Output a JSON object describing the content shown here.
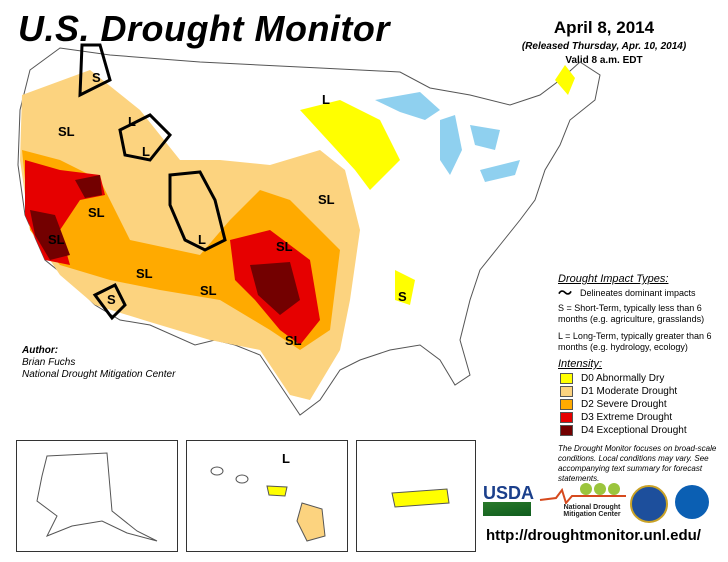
{
  "header": {
    "title": "U.S. Drought Monitor",
    "date": "April 8, 2014",
    "released": "(Released Thursday, Apr. 10, 2014)",
    "valid": "Valid 8 a.m. EDT"
  },
  "map_labels": [
    "S",
    "L",
    "SL",
    "L",
    "L",
    "SL",
    "SL",
    "L",
    "SL",
    "SL",
    "SL",
    "S",
    "SL",
    "SL",
    "S",
    "L"
  ],
  "legend": {
    "impact_title": "Drought Impact Types:",
    "delineates": "Delineates dominant impacts",
    "short_term": "S = Short-Term, typically less than 6 months (e.g. agriculture, grasslands)",
    "long_term": "L = Long-Term, typically greater than 6 months (e.g. hydrology, ecology)",
    "intensity_title": "Intensity:",
    "categories": [
      {
        "label": "D0 Abnormally Dry",
        "color": "#ffff00"
      },
      {
        "label": "D1 Moderate Drought",
        "color": "#fcd37f"
      },
      {
        "label": "D2 Severe Drought",
        "color": "#ffaa00"
      },
      {
        "label": "D3 Extreme Drought",
        "color": "#e60000"
      },
      {
        "label": "D4 Exceptional Drought",
        "color": "#730000"
      }
    ],
    "note": "The Drought Monitor focuses on broad-scale conditions. Local conditions may vary. See accompanying text summary for forecast statements."
  },
  "author": {
    "label": "Author:",
    "name": "Brian Fuchs",
    "org": "National Drought Mitigation Center"
  },
  "logos": {
    "usda": "USDA",
    "ndmc": "National Drought Mitigation Center"
  },
  "url": "http://droughtmonitor.unl.edu/"
}
